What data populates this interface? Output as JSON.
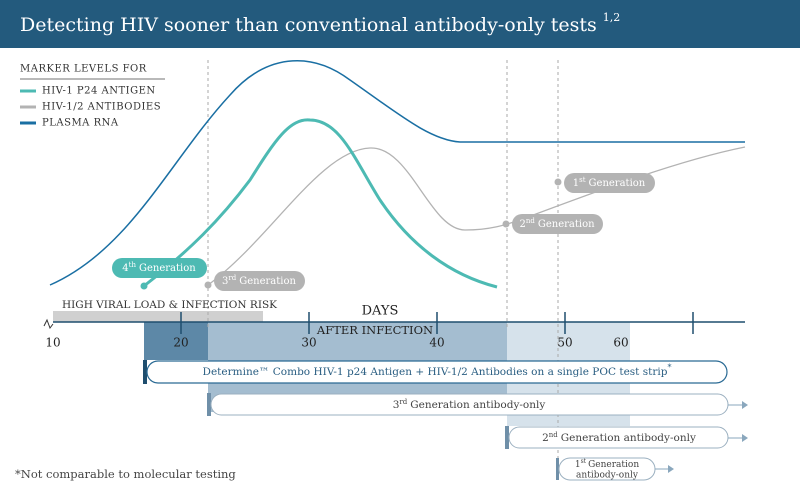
{
  "header": {
    "title": "Detecting HIV sooner than conventional antibody-only tests",
    "title_sup": "1,2"
  },
  "legend": {
    "title": "MARKER LEVELS FOR",
    "items": [
      "HIV-1 P24 ANTIGEN",
      "HIV-1/2 ANTIBODIES",
      "PLASMA RNA"
    ]
  },
  "generations": [
    {
      "number": "4",
      "suffix": "th",
      "text": "Generation"
    },
    {
      "number": "3",
      "suffix": "rd",
      "text": "Generation"
    },
    {
      "number": "2",
      "suffix": "nd",
      "text": "Generation"
    },
    {
      "number": "1",
      "suffix": "st",
      "text": "Generation"
    }
  ],
  "axis": {
    "risk": "HIGH VIRAL LOAD & INFECTION RISK",
    "title": "DAYS",
    "subtitle": "AFTER INFECTION",
    "ticks": [
      "10",
      "20",
      "30",
      "40",
      "50",
      "60"
    ]
  },
  "bars": {
    "combo": {
      "text": "Determine™ Combo HIV-1 p24 Antigen + HIV-1/2 Antibodies on a single POC test strip",
      "sup": "*"
    },
    "third": {
      "number": "3",
      "suffix": "rd",
      "text": "Generation antibody-only"
    },
    "second": {
      "number": "2",
      "suffix": "nd",
      "text": "Generation antibody-only"
    },
    "first": {
      "number": "1",
      "suffix": "st",
      "line1": "Generation",
      "line2": "antibody-only"
    }
  },
  "footnote": "*Not comparable to molecular testing"
}
